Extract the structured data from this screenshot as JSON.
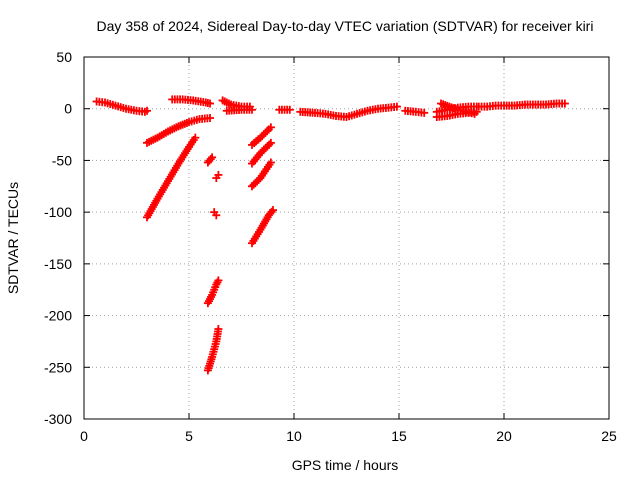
{
  "chart_data": {
    "type": "scatter",
    "title": "Day 358 of 2024, Sidereal Day-to-day VTEC variation (SDTVAR) for receiver kiri",
    "xlabel": "GPS time / hours",
    "ylabel": "SDTVAR / TECUs",
    "xlim": [
      0,
      25
    ],
    "ylim": [
      -300,
      50
    ],
    "xticks": [
      0,
      5,
      10,
      15,
      20,
      25
    ],
    "yticks": [
      50,
      0,
      -50,
      -100,
      -150,
      -200,
      -250,
      -300
    ],
    "grid": true,
    "marker": "plus",
    "color": "#ff0000",
    "series": [
      {
        "segments": [
          [
            [
              0.6,
              7
            ],
            [
              1.0,
              6
            ],
            [
              1.5,
              3
            ],
            [
              2.0,
              0
            ],
            [
              2.5,
              -2
            ],
            [
              2.9,
              -3
            ],
            [
              3.0,
              -2
            ]
          ],
          [
            [
              4.2,
              9
            ],
            [
              4.7,
              9
            ],
            [
              5.2,
              8
            ],
            [
              5.8,
              6
            ],
            [
              6.0,
              5
            ]
          ],
          [
            [
              3.0,
              -33
            ],
            [
              3.5,
              -28
            ],
            [
              4.0,
              -22
            ],
            [
              4.5,
              -17
            ],
            [
              5.0,
              -13
            ],
            [
              5.5,
              -10
            ],
            [
              6.0,
              -9
            ]
          ],
          [
            [
              3.0,
              -105
            ],
            [
              3.5,
              -87
            ],
            [
              4.0,
              -70
            ],
            [
              4.5,
              -53
            ],
            [
              5.0,
              -37
            ],
            [
              5.3,
              -28
            ]
          ],
          [
            [
              5.9,
              -52
            ],
            [
              6.1,
              -47
            ]
          ],
          [
            [
              6.3,
              -67
            ],
            [
              6.4,
              -64
            ]
          ],
          [
            [
              6.2,
              -100
            ],
            [
              6.3,
              -103
            ]
          ],
          [
            [
              5.9,
              -188
            ],
            [
              6.1,
              -180
            ],
            [
              6.3,
              -170
            ],
            [
              6.4,
              -166
            ]
          ],
          [
            [
              5.9,
              -253
            ],
            [
              6.1,
              -240
            ],
            [
              6.3,
              -225
            ],
            [
              6.4,
              -213
            ]
          ],
          [
            [
              6.6,
              8
            ],
            [
              7.0,
              4
            ],
            [
              7.5,
              2
            ],
            [
              7.9,
              2
            ]
          ],
          [
            [
              6.8,
              -2
            ],
            [
              7.5,
              -1
            ],
            [
              8.0,
              -1
            ]
          ],
          [
            [
              8.0,
              -35
            ],
            [
              8.4,
              -28
            ],
            [
              8.8,
              -20
            ],
            [
              8.9,
              -18
            ]
          ],
          [
            [
              8.0,
              -53
            ],
            [
              8.4,
              -43
            ],
            [
              8.9,
              -33
            ]
          ],
          [
            [
              8.0,
              -75
            ],
            [
              8.4,
              -67
            ],
            [
              8.9,
              -52
            ]
          ],
          [
            [
              8.0,
              -130
            ],
            [
              8.4,
              -117
            ],
            [
              8.8,
              -103
            ],
            [
              9.0,
              -98
            ]
          ],
          [
            [
              9.3,
              -1
            ],
            [
              9.8,
              -1
            ]
          ],
          [
            [
              10.3,
              -3
            ],
            [
              11.0,
              -4
            ],
            [
              11.5,
              -5
            ],
            [
              12.0,
              -7
            ],
            [
              12.5,
              -8
            ],
            [
              13.0,
              -5
            ],
            [
              13.5,
              -2
            ],
            [
              14.0,
              0
            ],
            [
              14.5,
              1
            ],
            [
              14.9,
              2
            ]
          ],
          [
            [
              15.3,
              -2
            ],
            [
              15.8,
              -3
            ],
            [
              16.2,
              -4
            ]
          ],
          [
            [
              16.8,
              -8
            ],
            [
              17.3,
              -7
            ],
            [
              17.8,
              -5
            ],
            [
              18.3,
              -4
            ],
            [
              18.7,
              -3
            ]
          ],
          [
            [
              16.8,
              -3
            ],
            [
              17.3,
              -1
            ],
            [
              17.8,
              1
            ],
            [
              18.3,
              2
            ],
            [
              18.7,
              2
            ]
          ],
          [
            [
              17.0,
              5
            ],
            [
              17.4,
              2
            ],
            [
              17.8,
              -1
            ],
            [
              18.2,
              -3
            ],
            [
              18.6,
              -5
            ]
          ],
          [
            [
              18.8,
              2
            ],
            [
              19.2,
              2
            ],
            [
              19.6,
              3
            ],
            [
              20.0,
              3
            ],
            [
              20.5,
              3
            ],
            [
              21.0,
              4
            ],
            [
              21.5,
              4
            ],
            [
              22.0,
              4
            ],
            [
              22.5,
              5
            ],
            [
              22.9,
              5
            ]
          ]
        ]
      }
    ]
  }
}
